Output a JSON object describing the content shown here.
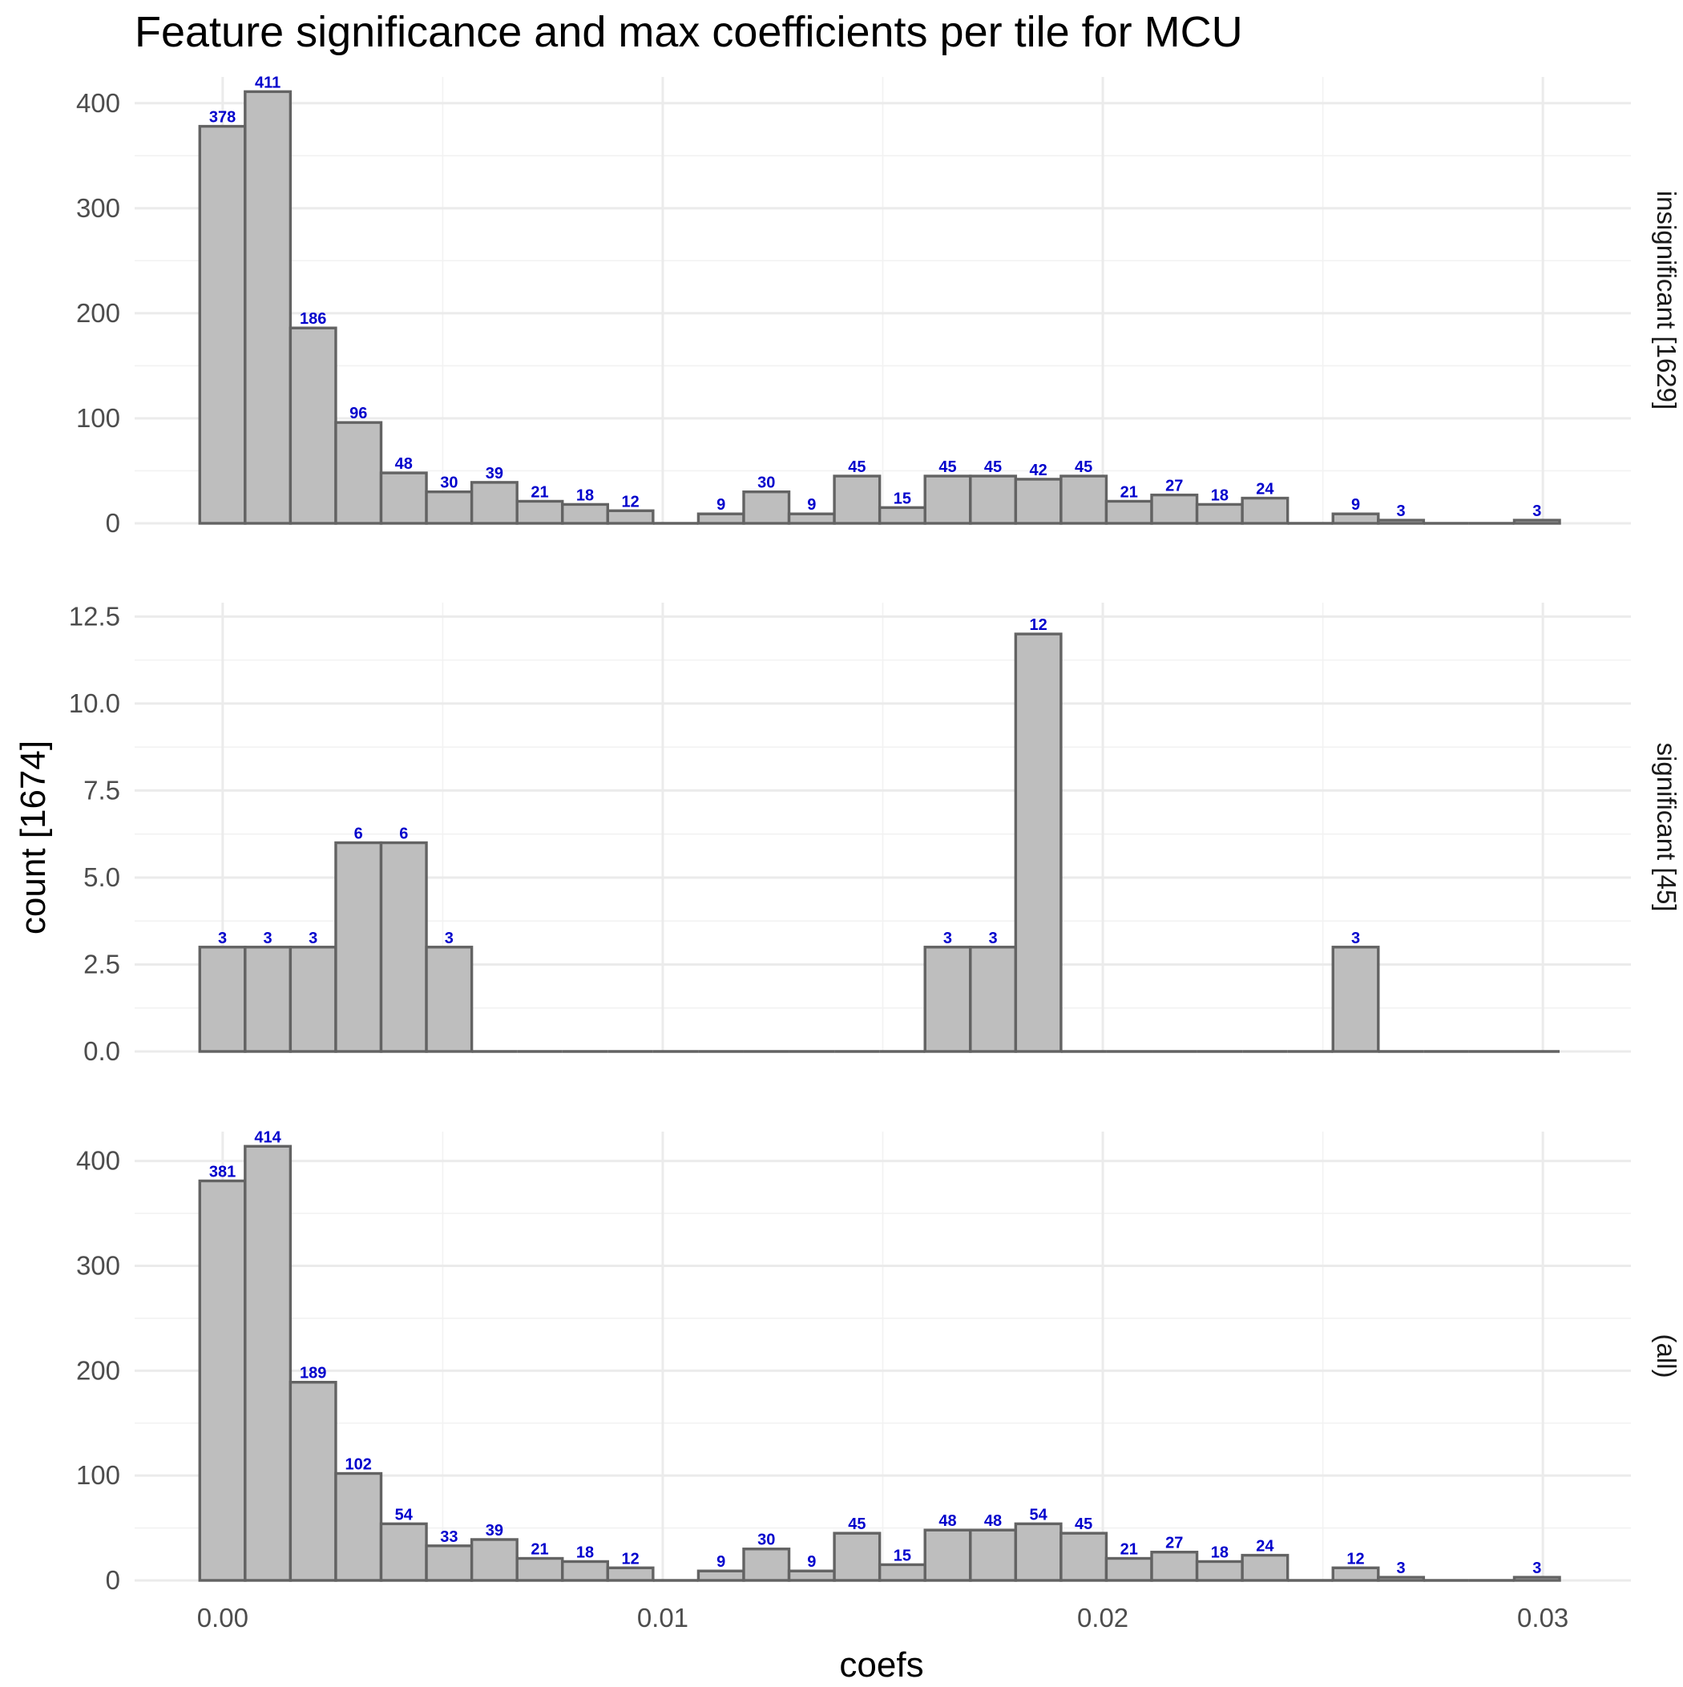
{
  "chart_data": {
    "type": "bar",
    "title": "Feature significance and max coefficients per tile for MCU",
    "xlabel": "coefs",
    "ylabel": "count [1674]",
    "xlim": [
      -0.002,
      0.032
    ],
    "x_ticks": [
      "0.00",
      "0.01",
      "0.02",
      "0.03"
    ],
    "x_tick_values": [
      0,
      0.01,
      0.02,
      0.03
    ],
    "bin_width": 0.00103,
    "bin_start": -0.00052,
    "grid": true,
    "label_color": "#0000cc",
    "bar_fill": "#bebebe",
    "bar_stroke": "#636363",
    "panels": [
      {
        "name": "insignificant [1629]",
        "ylim": [
          0,
          425
        ],
        "y_ticks": [
          "0",
          "100",
          "200",
          "300",
          "400"
        ],
        "y_tick_values": [
          0,
          100,
          200,
          300,
          400
        ],
        "values": [
          378,
          411,
          186,
          96,
          48,
          30,
          39,
          21,
          18,
          12,
          0,
          9,
          30,
          9,
          45,
          15,
          45,
          45,
          42,
          45,
          21,
          27,
          18,
          24,
          0,
          9,
          3,
          0,
          0,
          3
        ],
        "labels": [
          "378",
          "411",
          "186",
          "96",
          "48",
          "30",
          "39",
          "21",
          "18",
          "12",
          "",
          "9",
          "30",
          "9",
          "45",
          "15",
          "45",
          "45",
          "42",
          "45",
          "21",
          "27",
          "18",
          "24",
          "",
          "9",
          "3",
          "",
          "",
          "3"
        ]
      },
      {
        "name": "significant [45]",
        "ylim": [
          0,
          12.9
        ],
        "y_ticks": [
          "0.0",
          "2.5",
          "5.0",
          "7.5",
          "10.0",
          "12.5"
        ],
        "y_tick_values": [
          0,
          2.5,
          5,
          7.5,
          10,
          12.5
        ],
        "values": [
          3,
          3,
          3,
          6,
          6,
          3,
          0,
          0,
          0,
          0,
          0,
          0,
          0,
          0,
          0,
          0,
          3,
          3,
          12,
          0,
          0,
          0,
          0,
          0,
          0,
          3,
          0,
          0,
          0,
          0
        ],
        "labels": [
          "3",
          "3",
          "3",
          "6",
          "6",
          "3",
          "",
          "",
          "",
          "",
          "",
          "",
          "",
          "",
          "",
          "",
          "3",
          "3",
          "12",
          "",
          "",
          "",
          "",
          "",
          "",
          "3",
          "",
          "",
          "",
          ""
        ]
      },
      {
        "name": "(all)",
        "ylim": [
          0,
          428
        ],
        "y_ticks": [
          "0",
          "100",
          "200",
          "300",
          "400"
        ],
        "y_tick_values": [
          0,
          100,
          200,
          300,
          400
        ],
        "values": [
          381,
          414,
          189,
          102,
          54,
          33,
          39,
          21,
          18,
          12,
          0,
          9,
          30,
          9,
          45,
          15,
          48,
          48,
          54,
          45,
          21,
          27,
          18,
          24,
          0,
          12,
          3,
          0,
          0,
          3
        ],
        "labels": [
          "381",
          "414",
          "189",
          "102",
          "54",
          "33",
          "39",
          "21",
          "18",
          "12",
          "",
          "9",
          "30",
          "9",
          "45",
          "15",
          "48",
          "48",
          "54",
          "45",
          "21",
          "27",
          "18",
          "24",
          "",
          "12",
          "3",
          "",
          "",
          "3"
        ]
      }
    ]
  }
}
